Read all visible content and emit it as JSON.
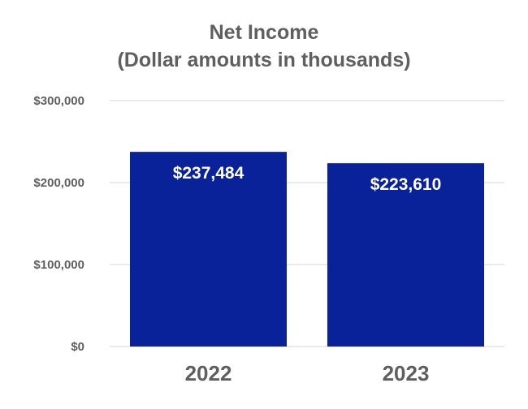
{
  "chart_data": {
    "type": "bar",
    "title": "Net Income",
    "subtitle": "(Dollar amounts in thousands)",
    "categories": [
      "2022",
      "2023"
    ],
    "values": [
      237484,
      223610
    ],
    "data_labels": [
      "$237,484",
      "$223,610"
    ],
    "ylim": [
      0,
      300000
    ],
    "yticks": [
      0,
      100000,
      200000,
      300000
    ],
    "ytick_labels": [
      "$0",
      "$100,000",
      "$200,000",
      "$300,000"
    ],
    "grid": true,
    "legend": "none",
    "bar_color": "#0a2299",
    "text_color": "#5f5f5f",
    "grid_color": "#e3e3e3"
  }
}
